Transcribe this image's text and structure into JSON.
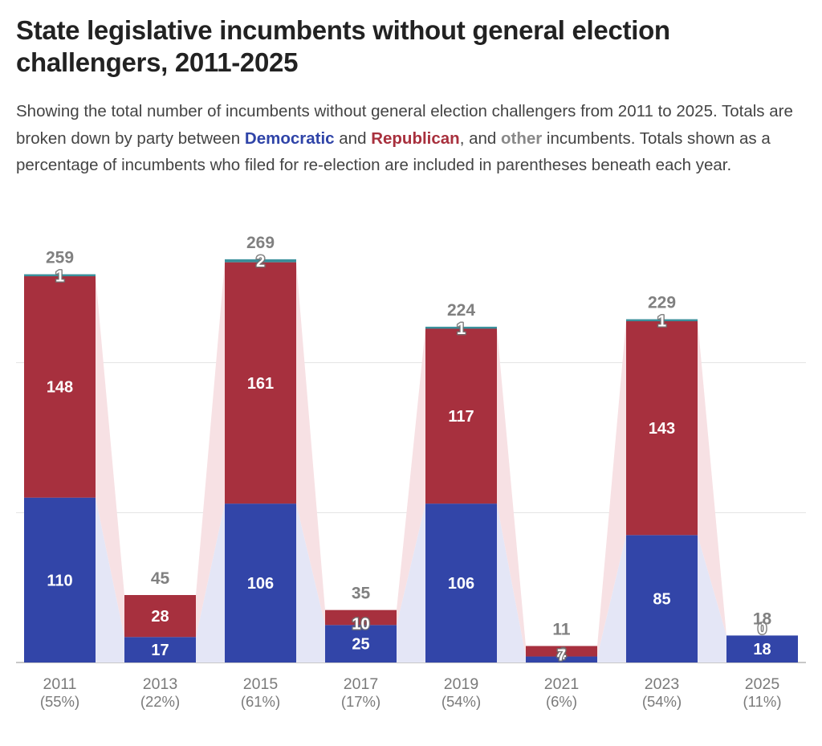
{
  "title": "State legislative incumbents without general election challengers, 2011-2025",
  "subtitle": {
    "part1": "Showing the total number of incumbents without general election challengers from 2011 to 2025. Totals are broken down by party between ",
    "dem_word": "Democratic",
    "part2": " and ",
    "rep_word": "Republican",
    "part3": ", and ",
    "other_word": "other",
    "part4": " incumbents. Totals shown as a percentage of incumbents who filed for re-election are included in parentheses beneath each year."
  },
  "colors": {
    "democratic": "#3245a8",
    "republican": "#a7303e",
    "other": "#3a8f9a",
    "dem_band": "#e4e6f6",
    "rep_band": "#f7e1e4",
    "grid": "#e2e2e2",
    "total_label": "#808080"
  },
  "chart_data": {
    "type": "bar",
    "stacked": true,
    "categories": [
      "2011",
      "2013",
      "2015",
      "2017",
      "2019",
      "2021",
      "2023",
      "2025"
    ],
    "percent_labels": [
      "(55%)",
      "(22%)",
      "(61%)",
      "(17%)",
      "(54%)",
      "(6%)",
      "(54%)",
      "(11%)"
    ],
    "series": [
      {
        "name": "Democratic",
        "values": [
          110,
          17,
          106,
          25,
          106,
          4,
          85,
          18
        ]
      },
      {
        "name": "Republican",
        "values": [
          148,
          28,
          161,
          10,
          117,
          7,
          143,
          0
        ]
      },
      {
        "name": "other",
        "values": [
          1,
          0,
          2,
          0,
          1,
          0,
          1,
          0
        ]
      }
    ],
    "segment_labels": {
      "Democratic": [
        "110",
        "17",
        "106",
        "25",
        "106",
        "4",
        "85",
        "18"
      ],
      "Republican": [
        "148",
        "28",
        "161",
        "10",
        "117",
        "7",
        "143",
        "0"
      ],
      "other": [
        "1",
        "",
        "2",
        "",
        "1",
        "",
        "1",
        ""
      ]
    },
    "totals": [
      "259",
      "45",
      "269",
      "35",
      "224",
      "11",
      "229",
      "18"
    ],
    "ylim": [
      0,
      300
    ],
    "gridlines": [
      0,
      100,
      200
    ],
    "grid": true,
    "legend": "none"
  }
}
